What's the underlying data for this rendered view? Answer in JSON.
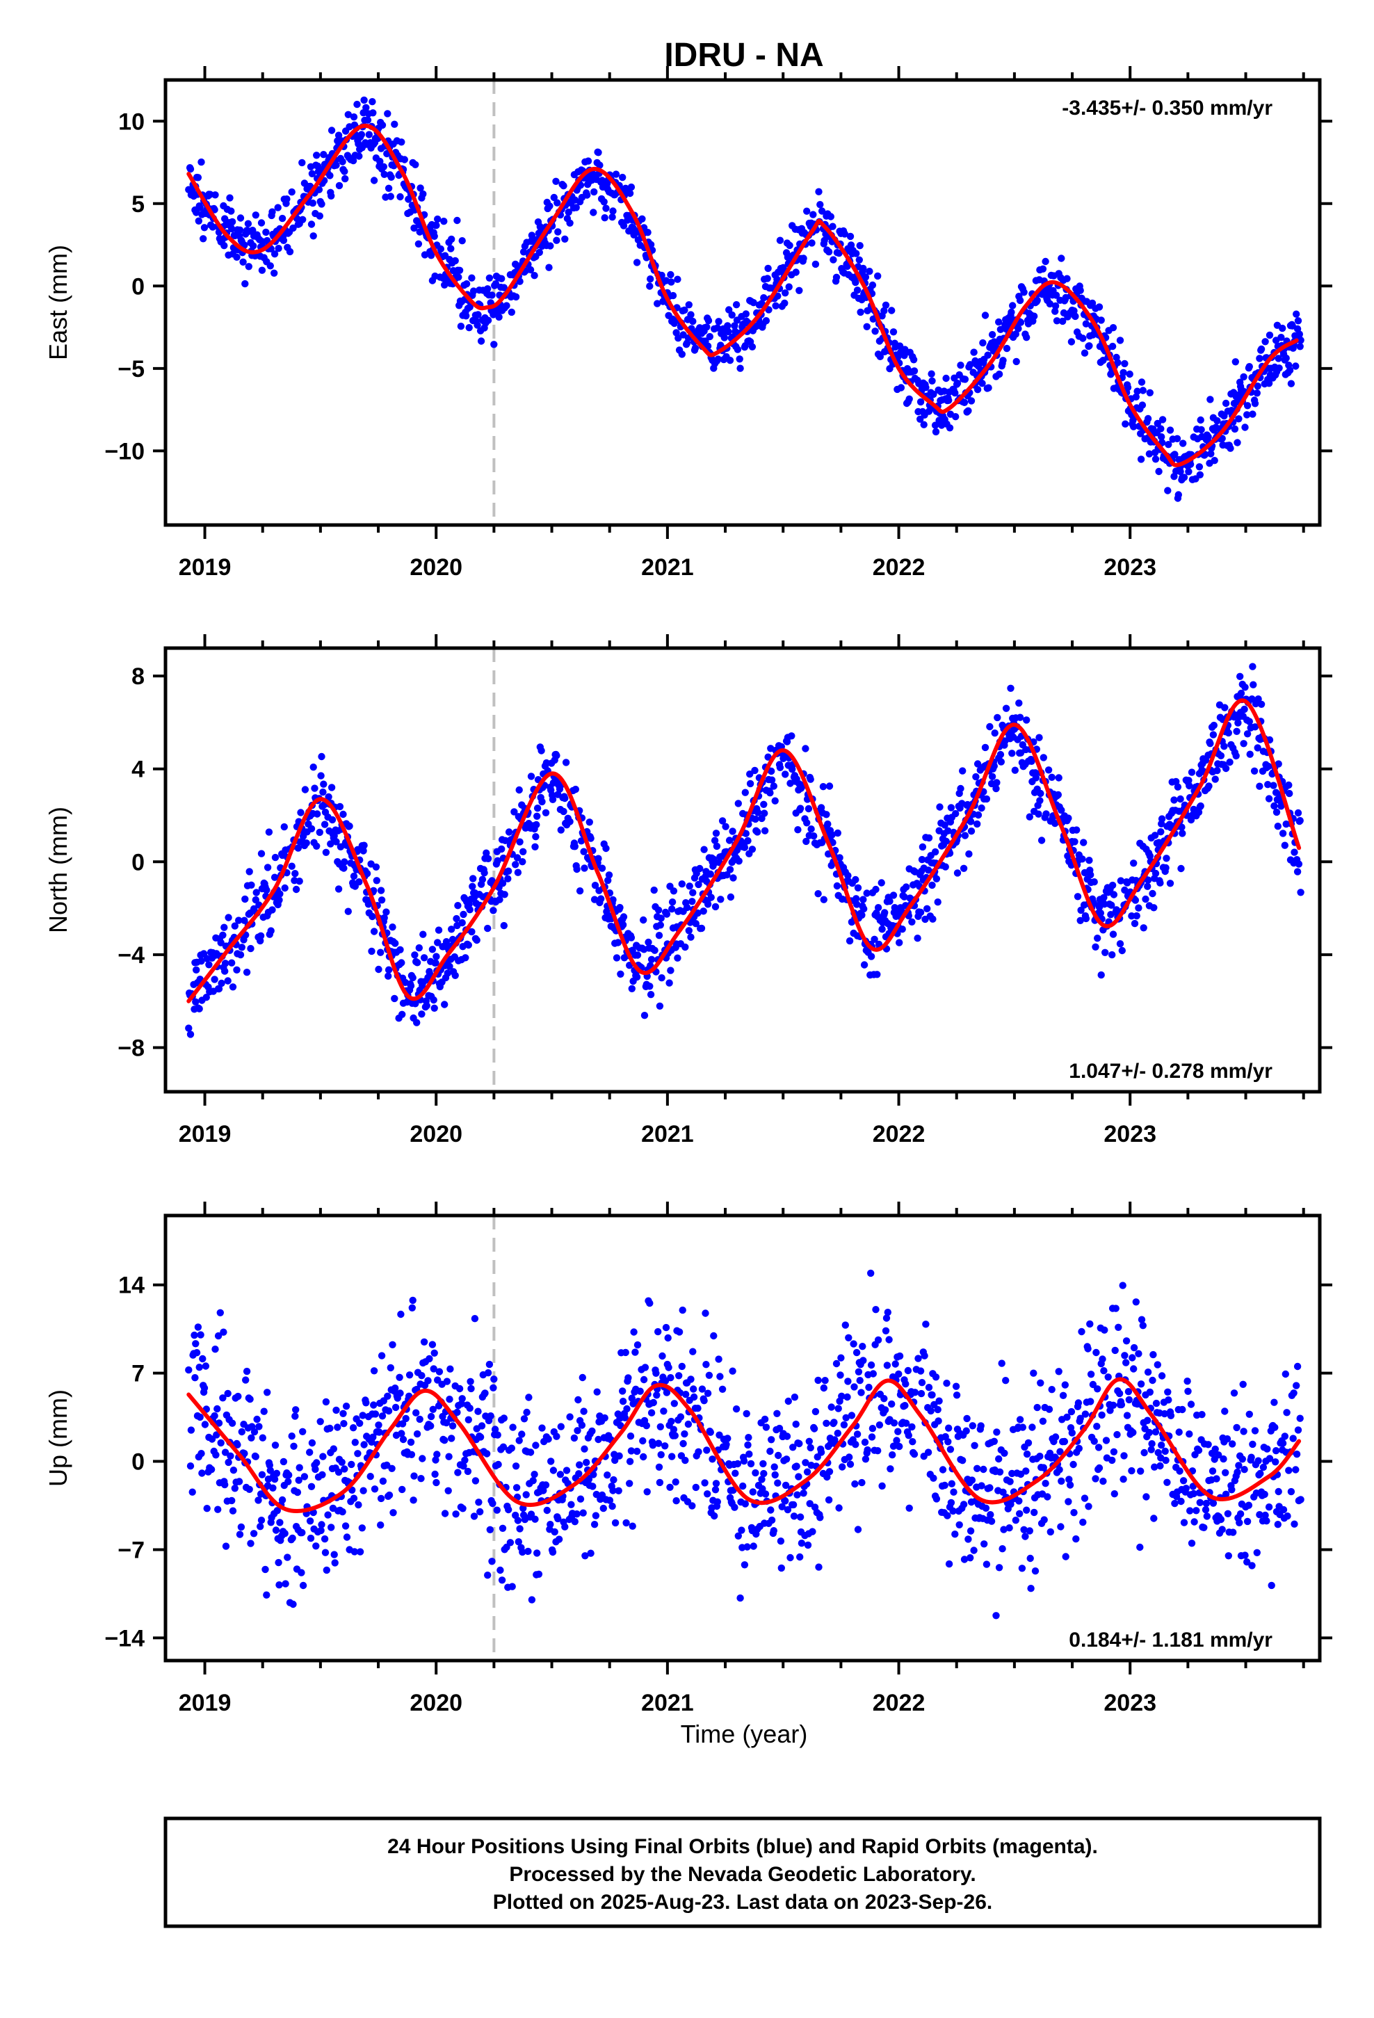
{
  "figure": {
    "title": "IDRU - NA",
    "xlabel": "Time (year)",
    "footer": [
      "24 Hour Positions Using Final Orbits (blue) and Rapid Orbits (magenta).",
      "Processed by the Nevada Geodetic Laboratory.",
      "Plotted on 2025-Aug-23. Last data on 2023-Sep-26."
    ]
  },
  "colors": {
    "points": "#0000ff",
    "fit": "#ff0000",
    "event_line": "#c0c0c0",
    "frame": "#000000"
  },
  "chart_data": [
    {
      "type": "scatter",
      "name": "east",
      "ylabel": "East (mm)",
      "rate_text": "-3.435+/- 0.350 mm/yr",
      "rate_placement": "top-right",
      "xlim": [
        2018.83,
        2023.82
      ],
      "ylim": [
        -14.5,
        12.5
      ],
      "x_ticks": [
        2019,
        2020,
        2021,
        2022,
        2023
      ],
      "x_tick_labels": [
        "2019",
        "2020",
        "2021",
        "2022",
        "2023"
      ],
      "y_ticks": [
        -10,
        -5,
        0,
        5,
        10
      ],
      "y_tick_labels": [
        "−10",
        "−5",
        "0",
        "5",
        "10"
      ],
      "event_line_x": 2020.25,
      "grid": false,
      "data_start": 2018.93,
      "data_end": 2023.74,
      "noise_sd": 1.0,
      "seed": 11,
      "fit_x": [
        2018.93,
        2019.1,
        2019.25,
        2019.45,
        2019.68,
        2019.85,
        2020.0,
        2020.15,
        2020.22,
        2020.3,
        2020.5,
        2020.68,
        2020.85,
        2021.0,
        2021.15,
        2021.22,
        2021.4,
        2021.62,
        2021.68,
        2021.85,
        2022.0,
        2022.15,
        2022.22,
        2022.4,
        2022.55,
        2022.68,
        2022.85,
        2023.0,
        2023.15,
        2023.22,
        2023.4,
        2023.6,
        2023.72
      ],
      "fit_y": [
        6.8,
        3.0,
        2.2,
        5.5,
        9.7,
        7.0,
        2.0,
        -0.9,
        -1.3,
        -0.5,
        3.9,
        7.1,
        4.4,
        -0.8,
        -3.7,
        -4.0,
        -1.7,
        3.2,
        3.6,
        0.0,
        -5.0,
        -7.2,
        -7.4,
        -4.6,
        -1.2,
        0.2,
        -2.4,
        -7.2,
        -10.1,
        -10.8,
        -8.8,
        -4.5,
        -3.3
      ]
    },
    {
      "type": "scatter",
      "name": "north",
      "ylabel": "North (mm)",
      "rate_text": "1.047+/- 0.278 mm/yr",
      "rate_placement": "bottom-right",
      "xlim": [
        2018.83,
        2023.82
      ],
      "ylim": [
        -9.9,
        9.2
      ],
      "x_ticks": [
        2019,
        2020,
        2021,
        2022,
        2023
      ],
      "x_tick_labels": [
        "2019",
        "2020",
        "2021",
        "2022",
        "2023"
      ],
      "y_ticks": [
        -8,
        -4,
        0,
        4,
        8
      ],
      "y_tick_labels": [
        "−8",
        "−4",
        "0",
        "4",
        "8"
      ],
      "event_line_x": 2020.25,
      "grid": false,
      "data_start": 2018.93,
      "data_end": 2023.74,
      "noise_sd": 0.9,
      "seed": 23,
      "fit_x": [
        2018.93,
        2019.1,
        2019.3,
        2019.5,
        2019.7,
        2019.88,
        2020.05,
        2020.25,
        2020.5,
        2020.7,
        2020.88,
        2021.05,
        2021.3,
        2021.5,
        2021.7,
        2021.88,
        2022.05,
        2022.3,
        2022.5,
        2022.7,
        2022.88,
        2023.05,
        2023.3,
        2023.5,
        2023.73
      ],
      "fit_y": [
        -6.0,
        -3.8,
        -1.2,
        2.7,
        -1.0,
        -5.8,
        -4.0,
        -1.1,
        3.8,
        -0.5,
        -4.7,
        -3.0,
        0.9,
        4.8,
        0.7,
        -3.7,
        -1.9,
        2.0,
        5.9,
        1.6,
        -2.7,
        -0.8,
        3.2,
        6.9,
        0.6
      ]
    },
    {
      "type": "scatter",
      "name": "up",
      "ylabel": "Up (mm)",
      "rate_text": "0.184+/- 1.181 mm/yr",
      "rate_placement": "bottom-right",
      "xlim": [
        2018.83,
        2023.82
      ],
      "ylim": [
        -15.8,
        19.5
      ],
      "x_ticks": [
        2019,
        2020,
        2021,
        2022,
        2023
      ],
      "x_tick_labels": [
        "2019",
        "2020",
        "2021",
        "2022",
        "2023"
      ],
      "y_ticks": [
        -14,
        -7,
        0,
        7,
        14
      ],
      "y_tick_labels": [
        "−14",
        "−7",
        "0",
        "7",
        "14"
      ],
      "event_line_x": 2020.25,
      "grid": false,
      "data_start": 2018.93,
      "data_end": 2023.74,
      "noise_sd": 3.6,
      "seed": 37,
      "fit_x": [
        2018.93,
        2019.15,
        2019.35,
        2019.6,
        2019.8,
        2019.95,
        2020.1,
        2020.35,
        2020.6,
        2020.8,
        2020.95,
        2021.1,
        2021.35,
        2021.6,
        2021.8,
        2021.95,
        2022.1,
        2022.35,
        2022.6,
        2022.8,
        2022.95,
        2023.1,
        2023.35,
        2023.6,
        2023.73
      ],
      "fit_y": [
        5.3,
        0.5,
        -3.8,
        -2.4,
        2.5,
        5.6,
        3.0,
        -3.2,
        -1.8,
        2.3,
        6.0,
        4.0,
        -3.0,
        -1.5,
        2.8,
        6.4,
        3.5,
        -3.0,
        -1.5,
        2.5,
        6.5,
        3.5,
        -2.8,
        -1.2,
        1.6
      ]
    }
  ]
}
